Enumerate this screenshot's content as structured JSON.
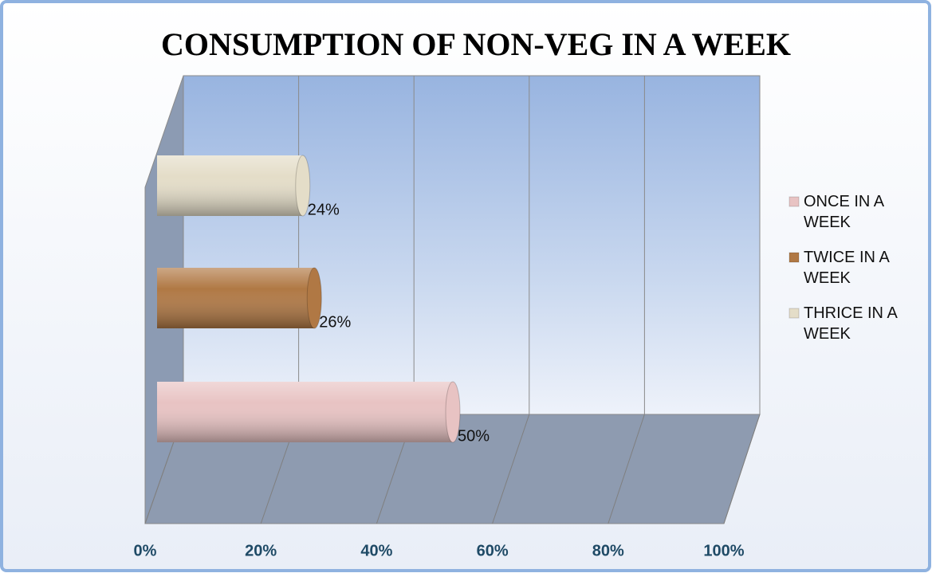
{
  "chart_data": {
    "type": "bar",
    "orientation": "horizontal",
    "title": "CONSUMPTION OF NON-VEG IN A WEEK",
    "categories": [
      null
    ],
    "series": [
      {
        "name": "ONCE IN A WEEK",
        "color": "#e8c3c3",
        "values": [
          50
        ],
        "value_labels": [
          "50%"
        ]
      },
      {
        "name": "TWICE IN A WEEK",
        "color": "#b07844",
        "values": [
          26
        ],
        "value_labels": [
          "26%"
        ]
      },
      {
        "name": "THRICE IN A WEEK",
        "color": "#e4ddc8",
        "values": [
          24
        ],
        "value_labels": [
          "24%"
        ]
      }
    ],
    "xlim": [
      0,
      100
    ],
    "xticks": [
      {
        "value": 0,
        "label": "0%"
      },
      {
        "value": 20,
        "label": "20%"
      },
      {
        "value": 40,
        "label": "40%"
      },
      {
        "value": 60,
        "label": "60%"
      },
      {
        "value": 80,
        "label": "80%"
      },
      {
        "value": 100,
        "label": "100%"
      }
    ],
    "grid": true,
    "legend": "right"
  }
}
